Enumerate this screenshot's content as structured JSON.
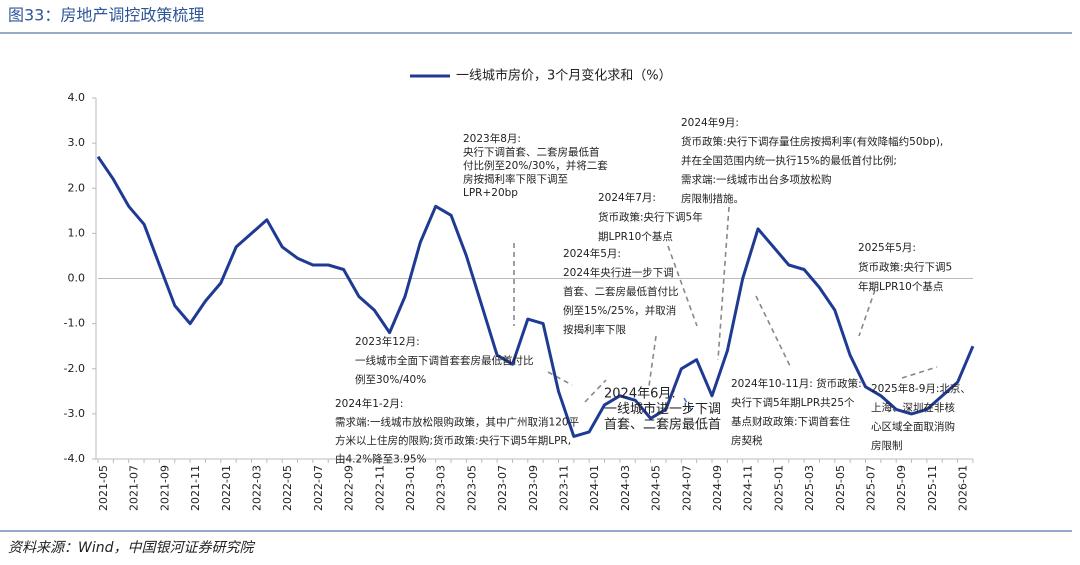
{
  "header": {
    "title": "图33：房地产调控政策梳理"
  },
  "chart_data": {
    "type": "line",
    "categories": [
      "2021-05",
      null,
      "2021-07",
      null,
      "2021-09",
      null,
      "2021-11",
      null,
      "2022-01",
      null,
      "2022-03",
      null,
      "2022-05",
      null,
      "2022-07",
      null,
      "2022-09",
      null,
      "2022-11",
      null,
      "2023-01",
      null,
      "2023-03",
      null,
      "2023-05",
      null,
      "2023-07",
      null,
      "2023-09",
      null,
      "2023-11",
      null,
      "2024-01",
      null,
      "2024-03",
      null,
      "2024-05",
      null,
      "2024-07",
      null,
      "2024-09",
      null,
      "2024-11",
      null,
      "2025-01",
      null,
      "2025-03",
      null,
      "2025-05",
      null,
      "2025-07",
      null,
      "2025-09",
      null,
      "2025-11",
      null,
      "2026-01",
      null
    ],
    "series": [
      {
        "name": "一线城市房价，3个月变化求和（%）",
        "color": "#1f3a93",
        "values": [
          2.7,
          2.2,
          1.6,
          1.2,
          0.3,
          -0.6,
          -1.0,
          -0.5,
          -0.1,
          0.7,
          1.0,
          1.3,
          0.7,
          0.45,
          0.3,
          0.3,
          0.2,
          -0.4,
          -0.7,
          -1.2,
          -0.4,
          0.8,
          1.6,
          1.4,
          0.5,
          -0.6,
          -1.7,
          -1.9,
          -0.9,
          -1.0,
          -2.5,
          -3.5,
          -3.4,
          -2.8,
          -2.6,
          -2.7,
          -3.1,
          -2.9,
          -2.0,
          -1.8,
          -2.6,
          -1.6,
          0.0,
          1.1,
          0.7,
          0.3,
          0.2,
          -0.2,
          -0.7,
          -1.7,
          -2.4,
          -2.6,
          -2.9,
          -3.0,
          -2.9,
          -2.6,
          -2.3,
          -1.5
        ]
      }
    ],
    "ylim": [
      -4,
      4
    ],
    "yticks": [
      {
        "value": -4,
        "label": "-4.0"
      },
      {
        "value": -3,
        "label": "-3.0"
      },
      {
        "value": -2,
        "label": "-2.0"
      },
      {
        "value": -1,
        "label": "-1.0"
      },
      {
        "value": 0,
        "label": "0.0"
      },
      {
        "value": 1,
        "label": "1.0"
      },
      {
        "value": 2,
        "label": "2.0"
      },
      {
        "value": 3,
        "label": "3.0"
      },
      {
        "value": 4,
        "label": "4.0"
      }
    ],
    "annotations": [
      [
        "2023年8月:",
        "央行下调首套、二套房最低首",
        "付比例至20%/30%，并将二套",
        "房按揭利率下限下调至",
        "LPR+20bp"
      ],
      [
        "2023年12月:",
        "一线城市全面下调首套套房最低首付比",
        "例至30%/40%"
      ],
      [
        "2024年1-2月:",
        "需求端:一线城市放松限购政策，其中广州取消120平",
        "方米以上住房的限购;货币政策:央行下调5年期LPR,",
        "由4.2%降至3.95%"
      ],
      [
        "2024年5月:",
        "2024年央行进一步下调",
        "首套、二套房最低首付比",
        "例至15%/25%，并取消",
        "按揭利率下限"
      ],
      [
        "2024年6月:",
        "一线城市进一步下调",
        "首套、二套房最低首"
      ],
      [
        "2024年7月:",
        "货币政策:央行下调5年",
        "期LPR10个基点"
      ],
      [
        "2024年9月:",
        "货币政策:央行下调存量住房按揭利率(有效降幅约50bp),",
        "并在全国范围内统一执行15%的最低首付比例;",
        "需求端:一线城市出台多项放松购",
        "房限制措施。"
      ],
      [
        "2024年10-11月: 货币政策:",
        "央行下调5年期LPR共25个",
        "基点财政政策:下调首套住",
        "房契税"
      ],
      [
        "2025年5月:",
        "货币政策:央行下调5",
        "年期LPR10个基点"
      ],
      [
        "2025年8-9月:北京、",
        "上海、深圳在非核",
        "心区域全面取消购",
        "房限制"
      ]
    ]
  },
  "footer": {
    "source": "资料来源：Wind，中国银河证券研究院"
  }
}
